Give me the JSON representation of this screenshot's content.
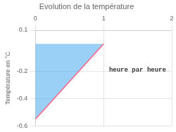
{
  "chart_data": {
    "type": "line",
    "title": "Evolution de la température",
    "y_label": "Température en °C",
    "series": [
      {
        "type": "area",
        "x": [
          0,
          0,
          1
        ],
        "values": [
          0.0,
          -0.55,
          0.0
        ]
      },
      {
        "type": "line",
        "x": [
          0,
          1
        ],
        "values": [
          -0.55,
          0.0
        ]
      }
    ],
    "annotations": [
      {
        "text": "heure par heure",
        "x": 1.08,
        "y": -0.19
      }
    ],
    "xlim": [
      0,
      2
    ],
    "ylim": [
      -0.6,
      0.1
    ],
    "xticks": [
      0,
      1,
      2
    ],
    "yticks": [
      -0.6,
      -0.4,
      -0.2,
      0.1
    ],
    "grid": true
  }
}
